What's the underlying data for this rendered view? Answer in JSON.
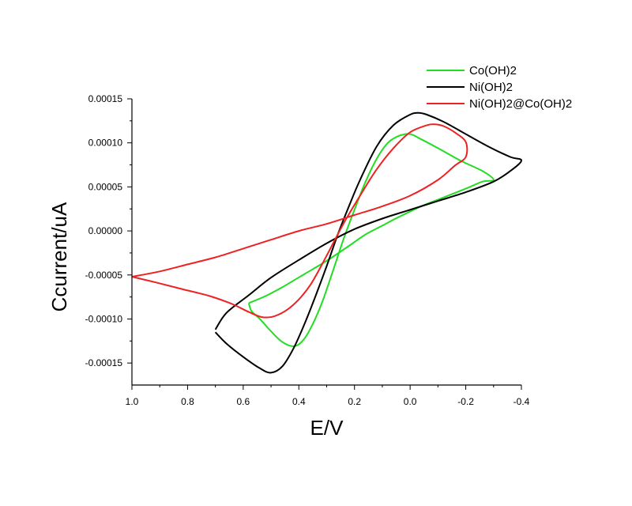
{
  "chart_data": {
    "type": "line",
    "xlabel": "E/V",
    "ylabel": "Ccurrent/uA",
    "xlim": [
      1.0,
      -0.4
    ],
    "ylim": [
      -0.000175,
      0.00015
    ],
    "x_reversed": true,
    "x_ticks": [
      1.0,
      0.8,
      0.6,
      0.4,
      0.2,
      0.0,
      -0.2,
      -0.4
    ],
    "x_tick_labels": [
      "1.0",
      "0.8",
      "0.6",
      "0.4",
      "0.2",
      "0.0",
      "-0.2",
      "-0.4"
    ],
    "y_ticks": [
      0.00015,
      0.0001,
      5e-05,
      0.0,
      -5e-05,
      -0.0001,
      -0.00015
    ],
    "y_tick_labels": [
      "0.00015",
      "0.00010",
      "0.00005",
      "0.00000",
      "-0.00005",
      "-0.00010",
      "-0.00015"
    ],
    "grid": false,
    "legend_position": "top-right",
    "series": [
      {
        "name": "Co(OH)2",
        "color": "#22dd22",
        "points": [
          [
            0.58,
            -8.2e-05
          ],
          [
            0.52,
            -7.4e-05
          ],
          [
            0.46,
            -6.4e-05
          ],
          [
            0.38,
            -4.9e-05
          ],
          [
            0.3,
            -3.4e-05
          ],
          [
            0.22,
            -1.7e-05
          ],
          [
            0.16,
            -4e-06
          ],
          [
            0.1,
            6e-06
          ],
          [
            0.04,
            1.6e-05
          ],
          [
            -0.04,
            2.8e-05
          ],
          [
            -0.12,
            3.8e-05
          ],
          [
            -0.2,
            4.8e-05
          ],
          [
            -0.26,
            5.6e-05
          ],
          [
            -0.3,
            5.8e-05
          ],
          [
            -0.26,
            6.8e-05
          ],
          [
            -0.18,
            8e-05
          ],
          [
            -0.1,
            9.4e-05
          ],
          [
            -0.04,
            0.000104
          ],
          [
            0.0,
            0.00011
          ],
          [
            0.04,
            0.000108
          ],
          [
            0.08,
            0.0001
          ],
          [
            0.12,
            8.2e-05
          ],
          [
            0.16,
            5.6e-05
          ],
          [
            0.2,
            2.4e-05
          ],
          [
            0.24,
            -1e-05
          ],
          [
            0.28,
            -4.8e-05
          ],
          [
            0.32,
            -8.4e-05
          ],
          [
            0.36,
            -0.000112
          ],
          [
            0.39,
            -0.000126
          ],
          [
            0.42,
            -0.000131
          ],
          [
            0.46,
            -0.000126
          ],
          [
            0.5,
            -0.000114
          ],
          [
            0.54,
            -0.0001
          ],
          [
            0.57,
            -9.1e-05
          ],
          [
            0.58,
            -8.2e-05
          ]
        ]
      },
      {
        "name": "Ni(OH)2",
        "color": "#000000",
        "points": [
          [
            0.7,
            -0.000112
          ],
          [
            0.66,
            -9.3e-05
          ],
          [
            0.58,
            -7.3e-05
          ],
          [
            0.5,
            -5.3e-05
          ],
          [
            0.4,
            -3.3e-05
          ],
          [
            0.3,
            -1.4e-05
          ],
          [
            0.2,
            2e-06
          ],
          [
            0.1,
            1.4e-05
          ],
          [
            0.0,
            2.4e-05
          ],
          [
            -0.1,
            3.4e-05
          ],
          [
            -0.2,
            4.4e-05
          ],
          [
            -0.3,
            5.6e-05
          ],
          [
            -0.36,
            6.8e-05
          ],
          [
            -0.4,
            8e-05
          ],
          [
            -0.36,
            8.4e-05
          ],
          [
            -0.28,
            9.6e-05
          ],
          [
            -0.2,
            0.00011
          ],
          [
            -0.12,
            0.000124
          ],
          [
            -0.06,
            0.000132
          ],
          [
            -0.03,
            0.000134
          ],
          [
            0.0,
            0.000132
          ],
          [
            0.06,
            0.00012
          ],
          [
            0.12,
            9.6e-05
          ],
          [
            0.18,
            5.8e-05
          ],
          [
            0.22,
            2.8e-05
          ],
          [
            0.26,
            -4e-06
          ],
          [
            0.3,
            -4e-05
          ],
          [
            0.34,
            -7.4e-05
          ],
          [
            0.38,
            -0.000106
          ],
          [
            0.42,
            -0.000134
          ],
          [
            0.46,
            -0.000154
          ],
          [
            0.5,
            -0.000161
          ],
          [
            0.54,
            -0.000156
          ],
          [
            0.6,
            -0.000143
          ],
          [
            0.66,
            -0.000128
          ],
          [
            0.7,
            -0.000115
          ]
        ]
      },
      {
        "name": "Ni(OH)2@Co(OH)2",
        "color": "#ee2222",
        "points": [
          [
            1.0,
            -5.2e-05
          ],
          [
            0.9,
            -4.6e-05
          ],
          [
            0.8,
            -3.8e-05
          ],
          [
            0.7,
            -3e-05
          ],
          [
            0.6,
            -2e-05
          ],
          [
            0.5,
            -1e-05
          ],
          [
            0.4,
            0.0
          ],
          [
            0.3,
            8e-06
          ],
          [
            0.2,
            1.8e-05
          ],
          [
            0.1,
            2.8e-05
          ],
          [
            0.0,
            4e-05
          ],
          [
            -0.1,
            5.8e-05
          ],
          [
            -0.16,
            7.4e-05
          ],
          [
            -0.2,
            8.4e-05
          ],
          [
            -0.2,
            0.000101
          ],
          [
            -0.16,
            0.000112
          ],
          [
            -0.12,
            0.000119
          ],
          [
            -0.09,
            0.000121
          ],
          [
            -0.06,
            0.00012
          ],
          [
            0.0,
            0.000112
          ],
          [
            0.06,
            9.4e-05
          ],
          [
            0.12,
            7e-05
          ],
          [
            0.18,
            4e-05
          ],
          [
            0.24,
            8e-06
          ],
          [
            0.3,
            -2.8e-05
          ],
          [
            0.36,
            -6.2e-05
          ],
          [
            0.42,
            -8.4e-05
          ],
          [
            0.48,
            -9.6e-05
          ],
          [
            0.53,
            -9.8e-05
          ],
          [
            0.58,
            -9.2e-05
          ],
          [
            0.64,
            -8.3e-05
          ],
          [
            0.72,
            -7.4e-05
          ],
          [
            0.82,
            -6.6e-05
          ],
          [
            0.92,
            -5.8e-05
          ],
          [
            1.0,
            -5.2e-05
          ]
        ]
      }
    ]
  }
}
